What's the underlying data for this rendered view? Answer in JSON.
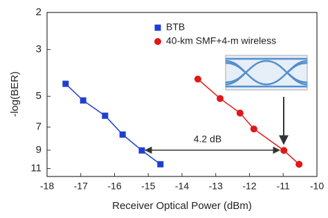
{
  "chart_data": {
    "type": "line",
    "x_label": "Receiver Optical Power (dBm)",
    "y_label": "-log(BER)",
    "xlim": [
      -18,
      -10
    ],
    "xticks": [
      -18,
      -17,
      -16,
      -15,
      -14,
      -13,
      -12,
      -11,
      -10
    ],
    "ylim": [
      2,
      12
    ],
    "yticks": [
      2,
      3,
      5,
      7,
      9,
      11
    ],
    "yscale": "log",
    "y_inverted": true,
    "grid": false,
    "legend": "top",
    "series": [
      {
        "name": "BTB",
        "color": "#1f3fd0",
        "marker": "square",
        "x": [
          -17.45,
          -16.93,
          -16.28,
          -15.76,
          -15.19,
          -14.64
        ],
        "values": [
          4.36,
          5.23,
          6.18,
          7.59,
          9.03,
          10.5
        ]
      },
      {
        "name": "40-km SMF+4-m wireless",
        "color": "#e01818",
        "marker": "circle",
        "x": [
          -13.53,
          -12.87,
          -12.28,
          -11.87,
          -10.98,
          -10.53
        ],
        "values": [
          4.14,
          5.12,
          6.0,
          7.14,
          9.03,
          10.5
        ]
      }
    ],
    "annotation": "4.2 dB"
  }
}
